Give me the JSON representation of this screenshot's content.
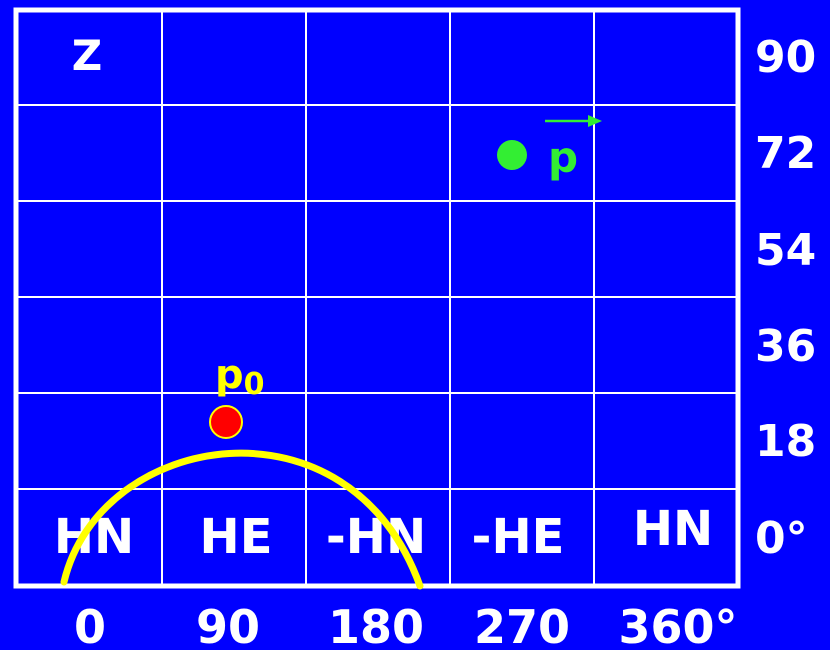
{
  "corner_label": "Z",
  "y_tick_labels": [
    "90",
    "72",
    "54",
    "36",
    "18",
    "0°"
  ],
  "x_tick_labels": [
    "0",
    "90",
    "180",
    "270",
    "360°"
  ],
  "zone_labels": [
    "HN",
    "HE",
    "-HN",
    "-HE",
    "HN"
  ],
  "point_p0": {
    "base": "p",
    "subscript": "0",
    "color": "#ff0000",
    "label_color": "#ffff00"
  },
  "point_p": {
    "label": "p",
    "color": "#33ee33",
    "vector_arrow": true
  },
  "colors": {
    "background": "#0000ff",
    "grid": "#ffffff",
    "curve": "#ffff00",
    "text": "#ffffff"
  }
}
